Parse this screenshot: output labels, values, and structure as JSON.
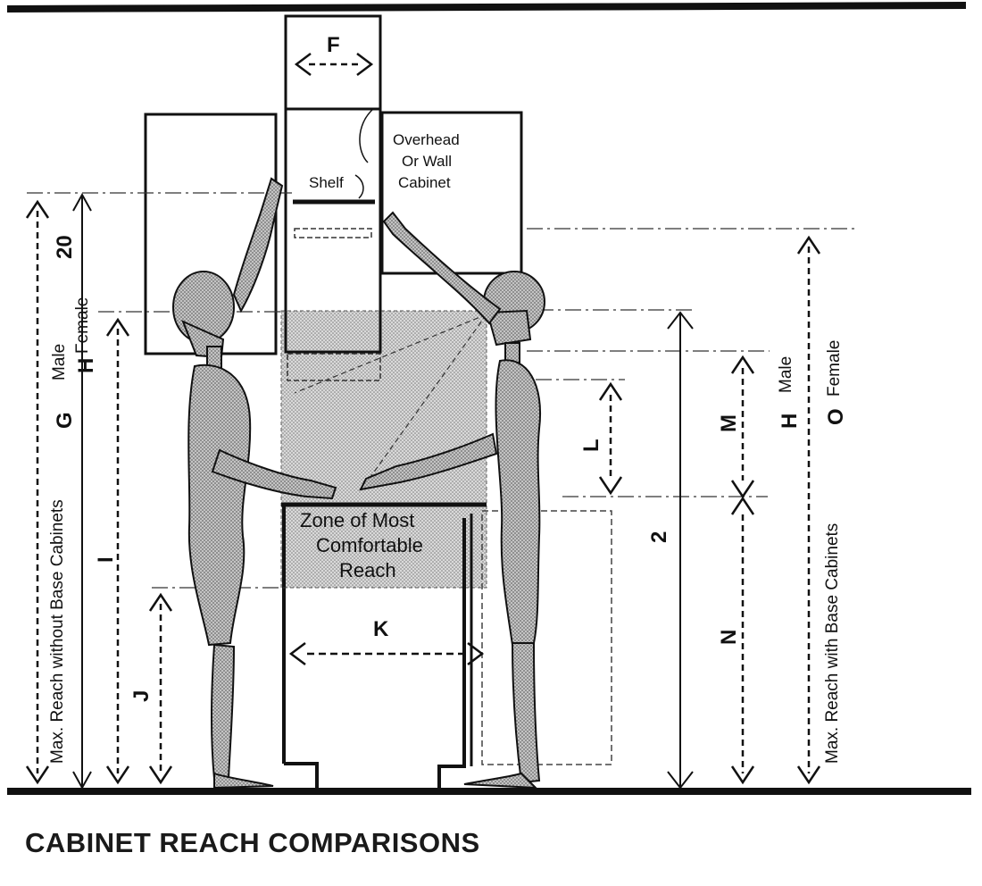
{
  "caption": "CABINET REACH COMPARISONS",
  "labels": {
    "F": "F",
    "overhead_1": "Overhead",
    "overhead_2": "Or Wall",
    "overhead_3": "Cabinet",
    "shelf": "Shelf",
    "twenty": "20",
    "G": "G",
    "male_left": "Male",
    "H_left": "H",
    "female_left": "Female",
    "left_reach": "Max. Reach without Base Cabinets",
    "I": "I",
    "J": "J",
    "K": "K",
    "L": "L",
    "M": "M",
    "N": "N",
    "two": "2",
    "H_right": "H",
    "male_right": "Male",
    "O": "O",
    "female_right": "Female",
    "right_reach": "Max. Reach with Base Cabinets",
    "zone_1": "Zone of Most",
    "zone_2": "Comfortable",
    "zone_3": "Reach"
  },
  "colors": {
    "ink": "#111111",
    "figure_fill": "#b9b9b9",
    "zone_fill": "#cfcfcf"
  }
}
